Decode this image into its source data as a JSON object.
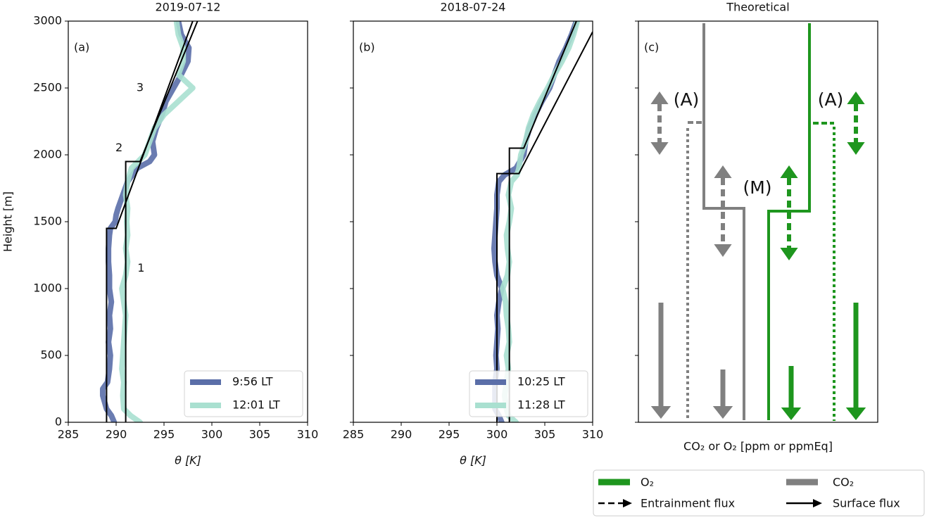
{
  "chart_data": [
    {
      "type": "profile",
      "title": "2019-07-12",
      "panel_label": "(a)",
      "xlabel": "θ [K]",
      "ylabel": "Height [m]",
      "xlim": [
        285,
        310
      ],
      "xticks": [
        285,
        290,
        295,
        300,
        305,
        310
      ],
      "ylim": [
        0,
        3000
      ],
      "yticks": [
        0,
        500,
        1000,
        1500,
        2000,
        2500,
        3000
      ],
      "series": [
        {
          "name": "9:56 LT",
          "color": "#5a6ea8",
          "y": [
            0,
            50,
            100,
            150,
            200,
            250,
            300,
            400,
            500,
            600,
            700,
            800,
            900,
            1000,
            1100,
            1200,
            1300,
            1400,
            1450,
            1500,
            1550,
            1600,
            1700,
            1800,
            1900,
            1950,
            2000,
            2100,
            2200,
            2300,
            2400,
            2500,
            2600,
            2700,
            2800,
            2900,
            3000
          ],
          "x": [
            289.8,
            289.5,
            289,
            288.8,
            288.6,
            288.6,
            289.1,
            289.3,
            289.4,
            289.2,
            289.4,
            289.3,
            289.5,
            289.3,
            289.3,
            289.2,
            289.2,
            289.3,
            289.4,
            289.9,
            290,
            290.2,
            290.7,
            291.2,
            292.2,
            293.5,
            294,
            293.8,
            294.2,
            294.8,
            295.2,
            296,
            296.8,
            297.5,
            297.6,
            296.8,
            296.5
          ]
        },
        {
          "name": "12:01 LT",
          "color": "#a9e0d0",
          "y": [
            0,
            50,
            100,
            200,
            300,
            400,
            500,
            600,
            700,
            800,
            900,
            1000,
            1100,
            1200,
            1300,
            1400,
            1500,
            1600,
            1700,
            1800,
            1900,
            1950,
            2000,
            2100,
            2200,
            2300,
            2400,
            2500,
            2600,
            2700,
            2800,
            2900,
            3000
          ],
          "x": [
            292.5,
            291.5,
            290.8,
            290.7,
            290.8,
            290.6,
            290.7,
            290.8,
            290.9,
            291,
            290.8,
            290.6,
            291,
            291.2,
            291,
            291.2,
            291.1,
            291.2,
            291,
            291.2,
            291.6,
            292.3,
            293,
            293.5,
            294,
            295,
            296.5,
            298,
            296.5,
            297,
            297,
            296.5,
            296.3
          ]
        }
      ],
      "model_lines": [
        {
          "x": [
            289,
            289,
            290,
            298
          ],
          "y": [
            0,
            1450,
            1450,
            3000
          ]
        },
        {
          "x": [
            291,
            291,
            292.5,
            298.5
          ],
          "y": [
            0,
            1950,
            1950,
            3000
          ]
        }
      ],
      "annotations": [
        "1",
        "2",
        "3"
      ]
    },
    {
      "type": "profile",
      "title": "2018-07-24",
      "panel_label": "(b)",
      "xlabel": "θ [K]",
      "xlim": [
        285,
        310
      ],
      "xticks": [
        285,
        290,
        295,
        300,
        305,
        310
      ],
      "ylim": [
        0,
        3000
      ],
      "yticks": [
        0,
        500,
        1000,
        1500,
        2000,
        2500,
        3000
      ],
      "series": [
        {
          "name": "10:25 LT",
          "color": "#5a6ea8",
          "y": [
            0,
            50,
            100,
            200,
            300,
            400,
            500,
            600,
            700,
            800,
            900,
            1000,
            1100,
            1200,
            1300,
            1400,
            1500,
            1600,
            1700,
            1800,
            1850,
            1900,
            2000,
            2100,
            2200,
            2300,
            2400,
            2500,
            2600,
            2700,
            2800,
            2900,
            3000
          ],
          "x": [
            300.5,
            300.2,
            299.8,
            299.8,
            299.8,
            300,
            299.9,
            300,
            300.1,
            300,
            300.2,
            300.5,
            300,
            299.8,
            299.7,
            299.8,
            299.9,
            300,
            300,
            300.2,
            300.8,
            302,
            302.8,
            303,
            303.4,
            304,
            304.7,
            305.5,
            306,
            306.5,
            307.2,
            307.8,
            308.3
          ]
        },
        {
          "name": "11:28 LT",
          "color": "#a9e0d0",
          "y": [
            0,
            50,
            100,
            200,
            300,
            400,
            500,
            600,
            700,
            800,
            900,
            1000,
            1100,
            1200,
            1300,
            1400,
            1500,
            1600,
            1700,
            1800,
            1850,
            1900,
            2000,
            2100,
            2200,
            2300,
            2400,
            2500,
            2600,
            2700,
            2800,
            2900,
            3000
          ],
          "x": [
            302,
            301.2,
            301,
            300.8,
            301,
            301.2,
            301,
            301.3,
            301.2,
            301,
            300.9,
            300.6,
            301.1,
            301.3,
            301.1,
            301,
            301.3,
            301.5,
            301.2,
            301.5,
            302.1,
            302.3,
            302.5,
            303,
            303.3,
            303.8,
            304.5,
            305.3,
            306,
            306.8,
            307.5,
            308,
            308.4
          ]
        }
      ],
      "model_lines": [
        {
          "x": [
            300,
            300,
            302.3,
            310
          ],
          "y": [
            0,
            1860,
            1860,
            2920
          ]
        },
        {
          "x": [
            301.3,
            301.3,
            302.8,
            308.3
          ],
          "y": [
            0,
            2050,
            2050,
            3000
          ]
        }
      ]
    },
    {
      "type": "schematic",
      "title": "Theoretical",
      "panel_label": "(c)",
      "xlabel": "CO₂ or O₂ [ppm or ppmEq]",
      "ylim": [
        0,
        3000
      ],
      "yticks": [
        0,
        500,
        1000,
        1500,
        2000,
        2500,
        3000
      ],
      "annotations": [
        "(A)",
        "(M)",
        "(A)"
      ],
      "legend": [
        {
          "name": "O₂",
          "color": "#1e961e"
        },
        {
          "name": "CO₂",
          "color": "#808080"
        },
        {
          "name": "Entrainment flux"
        },
        {
          "name": "Surface flux"
        }
      ]
    }
  ]
}
